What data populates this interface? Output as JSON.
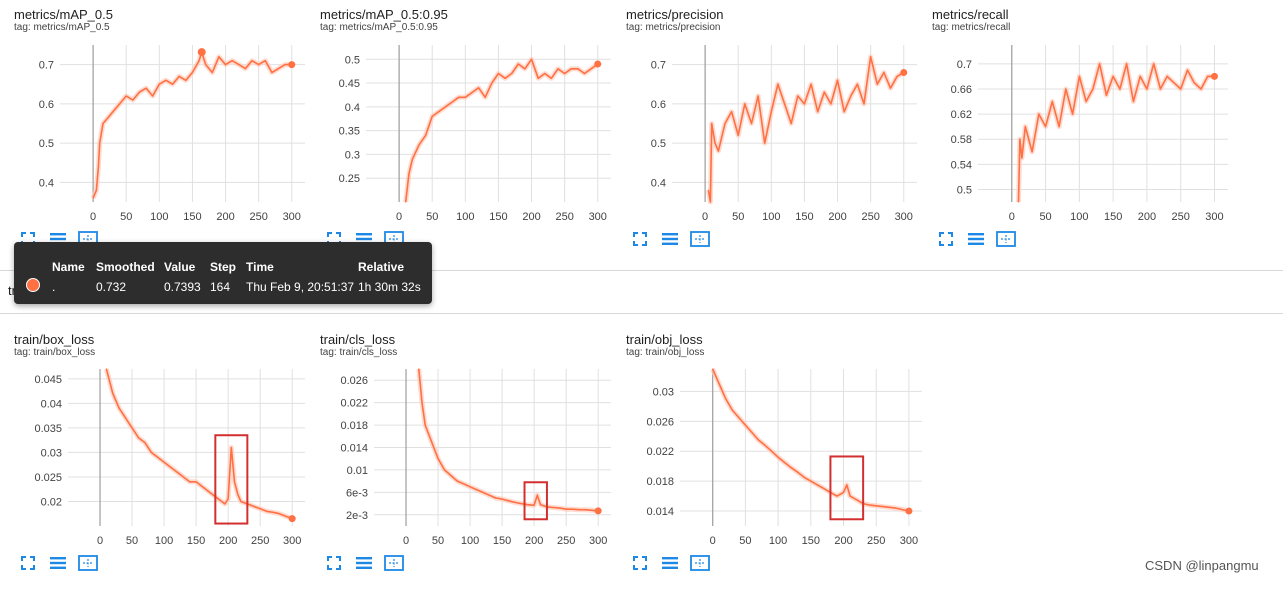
{
  "section_label": "train",
  "colors": {
    "line": "#ff7043",
    "raw": "#ffccbc",
    "grid": "#e0e0e0",
    "axis": "#9e9e9e",
    "icon": "#1e88e5",
    "highlight": "#d32f2f"
  },
  "icons": [
    "fullscreen-icon",
    "list-icon",
    "fit-domain-icon"
  ],
  "tooltip": {
    "headers": {
      "name": "Name",
      "smoothed": "Smoothed",
      "value": "Value",
      "step": "Step",
      "time": "Time",
      "relative": "Relative"
    },
    "row": {
      "name": ".",
      "smoothed": "0.732",
      "value": "0.7393",
      "step": "164",
      "time": "Thu Feb 9, 20:51:37",
      "relative": "1h 30m 32s"
    }
  },
  "watermark": "CSDN @linpangmu",
  "chart_data": [
    {
      "type": "line",
      "title": "metrics/mAP_0.5",
      "tag": "tag: metrics/mAP_0.5",
      "xlim": [
        -50,
        320
      ],
      "ylim": [
        0.35,
        0.75
      ],
      "xticks": [
        0,
        50,
        100,
        150,
        200,
        250,
        300
      ],
      "yticks": [
        0.4,
        0.5,
        0.6,
        0.7
      ],
      "ytick_labels": [
        "0.4",
        "0.5",
        "0.6",
        "0.7"
      ],
      "series": [
        {
          "x": [
            0,
            5,
            8,
            10,
            15,
            20,
            30,
            40,
            50,
            60,
            70,
            80,
            90,
            100,
            110,
            120,
            130,
            140,
            150,
            160,
            164,
            170,
            180,
            190,
            200,
            210,
            220,
            230,
            240,
            250,
            260,
            270,
            280,
            290,
            300
          ],
          "y": [
            0.36,
            0.38,
            0.44,
            0.5,
            0.55,
            0.56,
            0.58,
            0.6,
            0.62,
            0.61,
            0.63,
            0.64,
            0.62,
            0.65,
            0.66,
            0.65,
            0.67,
            0.66,
            0.68,
            0.71,
            0.732,
            0.7,
            0.68,
            0.72,
            0.7,
            0.71,
            0.7,
            0.69,
            0.71,
            0.7,
            0.71,
            0.68,
            0.69,
            0.7,
            0.7
          ]
        }
      ],
      "highlights": []
    },
    {
      "type": "line",
      "title": "metrics/mAP_0.5:0.95",
      "tag": "tag: metrics/mAP_0.5:0.95",
      "xlim": [
        -50,
        320
      ],
      "ylim": [
        0.2,
        0.53
      ],
      "xticks": [
        0,
        50,
        100,
        150,
        200,
        250,
        300
      ],
      "yticks": [
        0.25,
        0.3,
        0.35,
        0.4,
        0.45,
        0.5
      ],
      "ytick_labels": [
        "0.25",
        "0.3",
        "0.35",
        "0.4",
        "0.45",
        "0.5"
      ],
      "series": [
        {
          "x": [
            10,
            15,
            20,
            30,
            40,
            50,
            60,
            70,
            80,
            90,
            100,
            110,
            120,
            130,
            140,
            150,
            160,
            170,
            180,
            190,
            200,
            210,
            220,
            230,
            240,
            250,
            260,
            270,
            280,
            290,
            300
          ],
          "y": [
            0.2,
            0.26,
            0.29,
            0.32,
            0.34,
            0.38,
            0.39,
            0.4,
            0.41,
            0.42,
            0.42,
            0.43,
            0.44,
            0.42,
            0.45,
            0.47,
            0.46,
            0.47,
            0.49,
            0.48,
            0.5,
            0.46,
            0.47,
            0.46,
            0.48,
            0.47,
            0.48,
            0.48,
            0.47,
            0.48,
            0.49
          ]
        }
      ],
      "highlights": []
    },
    {
      "type": "line",
      "title": "metrics/precision",
      "tag": "tag: metrics/precision",
      "xlim": [
        -50,
        320
      ],
      "ylim": [
        0.35,
        0.75
      ],
      "xticks": [
        0,
        50,
        100,
        150,
        200,
        250,
        300
      ],
      "yticks": [
        0.4,
        0.5,
        0.6,
        0.7
      ],
      "ytick_labels": [
        "0.4",
        "0.5",
        "0.6",
        "0.7"
      ],
      "series": [
        {
          "x": [
            5,
            8,
            10,
            15,
            20,
            30,
            40,
            50,
            60,
            70,
            80,
            90,
            100,
            110,
            120,
            130,
            140,
            150,
            160,
            170,
            180,
            190,
            200,
            210,
            220,
            230,
            240,
            250,
            260,
            270,
            280,
            290,
            300
          ],
          "y": [
            0.38,
            0.35,
            0.55,
            0.5,
            0.48,
            0.55,
            0.58,
            0.52,
            0.6,
            0.55,
            0.62,
            0.5,
            0.58,
            0.65,
            0.6,
            0.55,
            0.62,
            0.6,
            0.65,
            0.58,
            0.63,
            0.6,
            0.66,
            0.58,
            0.62,
            0.65,
            0.6,
            0.72,
            0.65,
            0.68,
            0.64,
            0.67,
            0.68
          ]
        }
      ],
      "highlights": []
    },
    {
      "type": "line",
      "title": "metrics/recall",
      "tag": "tag: metrics/recall",
      "xlim": [
        -50,
        320
      ],
      "ylim": [
        0.48,
        0.73
      ],
      "xticks": [
        0,
        50,
        100,
        150,
        200,
        250,
        300
      ],
      "yticks": [
        0.5,
        0.54,
        0.58,
        0.62,
        0.66,
        0.7
      ],
      "ytick_labels": [
        "0.5",
        "0.54",
        "0.58",
        "0.62",
        "0.66",
        "0.7"
      ],
      "series": [
        {
          "x": [
            10,
            12,
            15,
            20,
            30,
            40,
            50,
            60,
            70,
            80,
            90,
            100,
            110,
            120,
            130,
            140,
            150,
            160,
            170,
            180,
            190,
            200,
            210,
            220,
            230,
            240,
            250,
            260,
            270,
            280,
            290,
            300
          ],
          "y": [
            0.48,
            0.58,
            0.55,
            0.6,
            0.56,
            0.62,
            0.6,
            0.64,
            0.6,
            0.66,
            0.62,
            0.68,
            0.64,
            0.66,
            0.7,
            0.65,
            0.68,
            0.66,
            0.7,
            0.64,
            0.68,
            0.66,
            0.7,
            0.66,
            0.68,
            0.67,
            0.66,
            0.69,
            0.67,
            0.66,
            0.68,
            0.68
          ]
        }
      ],
      "highlights": []
    },
    {
      "type": "line",
      "title": "train/box_loss",
      "tag": "tag: train/box_loss",
      "xlim": [
        -50,
        320
      ],
      "ylim": [
        0.015,
        0.047
      ],
      "xticks": [
        0,
        50,
        100,
        150,
        200,
        250,
        300
      ],
      "yticks": [
        0.02,
        0.025,
        0.03,
        0.035,
        0.04,
        0.045
      ],
      "ytick_labels": [
        "0.02",
        "0.025",
        "0.03",
        "0.035",
        "0.04",
        "0.045"
      ],
      "series": [
        {
          "x": [
            10,
            20,
            30,
            40,
            50,
            60,
            70,
            80,
            90,
            100,
            110,
            120,
            130,
            140,
            150,
            160,
            170,
            180,
            190,
            195,
            200,
            205,
            210,
            215,
            220,
            230,
            240,
            250,
            260,
            270,
            280,
            290,
            300
          ],
          "y": [
            0.047,
            0.042,
            0.039,
            0.037,
            0.035,
            0.033,
            0.032,
            0.03,
            0.029,
            0.028,
            0.027,
            0.026,
            0.025,
            0.024,
            0.024,
            0.023,
            0.022,
            0.021,
            0.02,
            0.0195,
            0.0205,
            0.031,
            0.024,
            0.0215,
            0.02,
            0.0195,
            0.019,
            0.0185,
            0.018,
            0.0178,
            0.0175,
            0.017,
            0.0165
          ]
        }
      ],
      "highlights": [
        {
          "x": [
            180,
            230
          ],
          "y": [
            0.0155,
            0.0335
          ]
        }
      ]
    },
    {
      "type": "line",
      "title": "train/cls_loss",
      "tag": "tag: train/cls_loss",
      "xlim": [
        -50,
        320
      ],
      "ylim": [
        0.0,
        0.028
      ],
      "xticks": [
        0,
        50,
        100,
        150,
        200,
        250,
        300
      ],
      "yticks": [
        0.002,
        0.006,
        0.01,
        0.014,
        0.018,
        0.022,
        0.026
      ],
      "ytick_labels": [
        "2e-3",
        "6e-3",
        "0.01",
        "0.014",
        "0.018",
        "0.022",
        "0.026"
      ],
      "series": [
        {
          "x": [
            20,
            25,
            30,
            40,
            50,
            60,
            70,
            80,
            90,
            100,
            110,
            120,
            130,
            140,
            150,
            160,
            170,
            180,
            190,
            200,
            205,
            210,
            220,
            230,
            240,
            250,
            260,
            270,
            280,
            290,
            300
          ],
          "y": [
            0.028,
            0.022,
            0.018,
            0.015,
            0.012,
            0.01,
            0.009,
            0.008,
            0.0075,
            0.007,
            0.0065,
            0.006,
            0.0055,
            0.005,
            0.0048,
            0.0045,
            0.0042,
            0.004,
            0.0038,
            0.0037,
            0.0055,
            0.0038,
            0.0034,
            0.0033,
            0.0032,
            0.003,
            0.003,
            0.0029,
            0.0029,
            0.0028,
            0.0027
          ]
        }
      ],
      "highlights": [
        {
          "x": [
            185,
            220
          ],
          "y": [
            0.0012,
            0.0078
          ]
        }
      ]
    },
    {
      "type": "line",
      "title": "train/obj_loss",
      "tag": "tag: train/obj_loss",
      "xlim": [
        -50,
        320
      ],
      "ylim": [
        0.012,
        0.033
      ],
      "xticks": [
        0,
        50,
        100,
        150,
        200,
        250,
        300
      ],
      "yticks": [
        0.014,
        0.018,
        0.022,
        0.026,
        0.03
      ],
      "ytick_labels": [
        "0.014",
        "0.018",
        "0.022",
        "0.026",
        "0.03"
      ],
      "series": [
        {
          "x": [
            0,
            10,
            20,
            30,
            40,
            50,
            60,
            70,
            80,
            90,
            100,
            110,
            120,
            130,
            140,
            150,
            160,
            170,
            180,
            190,
            200,
            205,
            210,
            220,
            230,
            240,
            250,
            260,
            270,
            280,
            290,
            300
          ],
          "y": [
            0.033,
            0.031,
            0.029,
            0.0275,
            0.0265,
            0.0255,
            0.0245,
            0.0235,
            0.0228,
            0.022,
            0.0212,
            0.0205,
            0.0198,
            0.0192,
            0.0185,
            0.018,
            0.0175,
            0.017,
            0.0165,
            0.016,
            0.0165,
            0.0175,
            0.016,
            0.0155,
            0.015,
            0.0148,
            0.0147,
            0.0146,
            0.0145,
            0.0144,
            0.0142,
            0.014
          ]
        }
      ],
      "highlights": [
        {
          "x": [
            180,
            230
          ],
          "y": [
            0.0129,
            0.0213
          ]
        }
      ]
    }
  ]
}
